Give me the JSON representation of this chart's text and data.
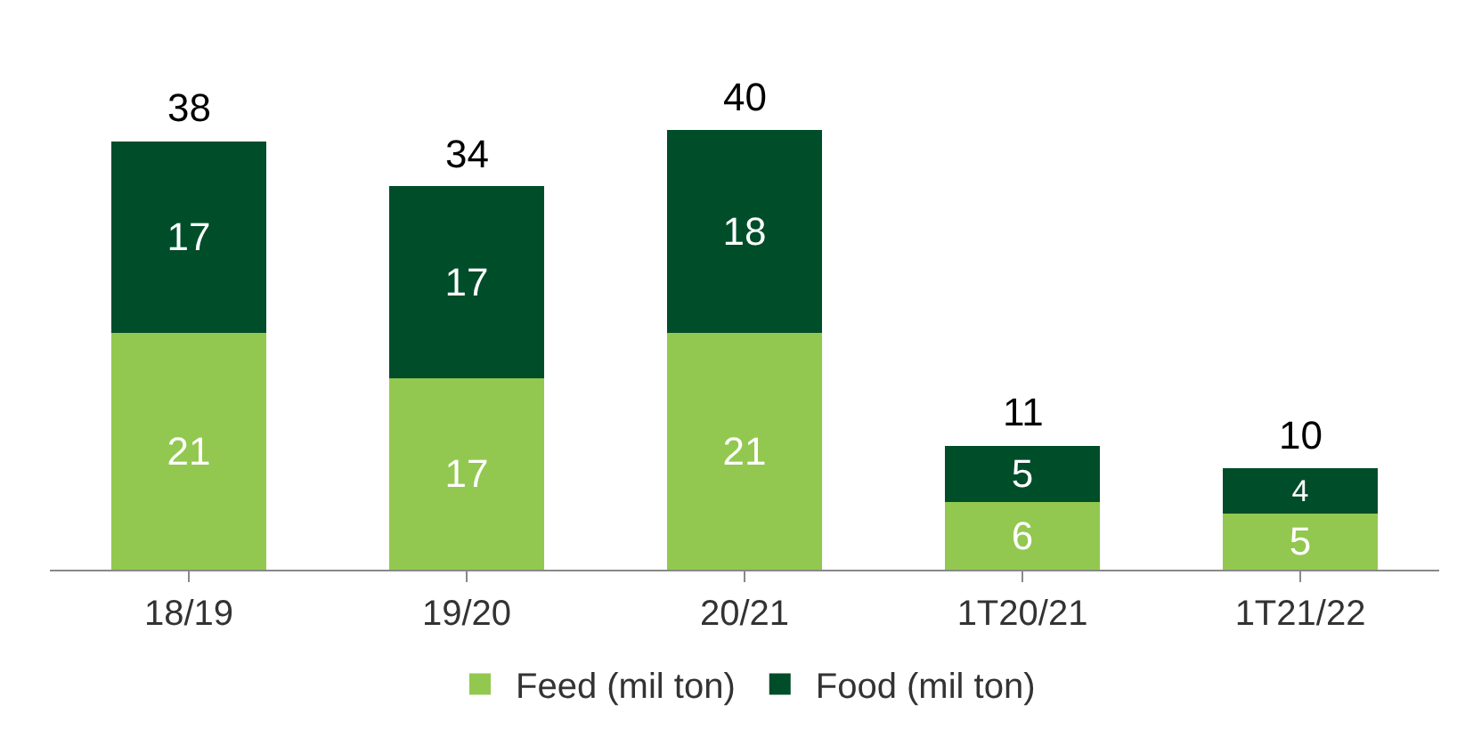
{
  "chart_data": {
    "type": "bar",
    "stacked": true,
    "categories": [
      "18/19",
      "19/20",
      "20/21",
      "1T20/21",
      "1T21/22"
    ],
    "series": [
      {
        "name": "Feed (mil ton)",
        "color": "#92c84f",
        "values": [
          21,
          17,
          21,
          6,
          5
        ]
      },
      {
        "name": "Food (mil ton)",
        "color": "#004d2a",
        "values": [
          17,
          17,
          18,
          5,
          4
        ]
      }
    ],
    "totals": [
      "38",
      "34",
      "40",
      "11",
      "10"
    ],
    "data_labels": true,
    "legend": "bottom",
    "tick_labels": "x"
  }
}
